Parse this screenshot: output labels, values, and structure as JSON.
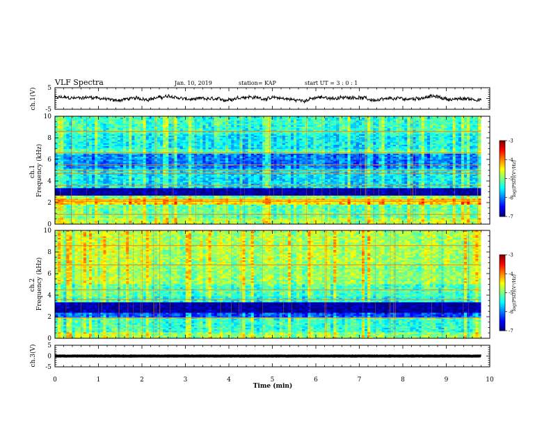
{
  "header": {
    "title": "VLF Spectra",
    "date": "Jan. 10, 2019",
    "station": "station= KAP",
    "start": "start  UT =   3 : 0  : 1"
  },
  "chart_data": [
    {
      "type": "line",
      "panel": "ch1-waveform",
      "ylabel": "ch.1(V)",
      "ylim": [
        -5,
        5
      ],
      "yticks": [
        "5",
        "-5"
      ],
      "xlim": [
        0,
        10
      ],
      "data_end_min": 9.8,
      "baseline": 0,
      "amplitude": 1.6,
      "color": "#000000"
    },
    {
      "type": "heatmap",
      "panel": "ch1-spectrogram",
      "ylabel": "ch.1\nFrequency (kHz)",
      "ylabel_lines": [
        "ch.1",
        "Frequency (kHz)"
      ],
      "ylim": [
        0,
        10
      ],
      "yticks": [
        "0",
        "2",
        "4",
        "6",
        "8",
        "10"
      ],
      "xlim": [
        0,
        10
      ],
      "data_end_min": 9.8,
      "bands": [
        {
          "from": 0.0,
          "to": 0.6,
          "level": -4.8
        },
        {
          "from": 0.6,
          "to": 1.8,
          "level": -5.1
        },
        {
          "from": 1.8,
          "to": 2.4,
          "level": -4.4
        },
        {
          "from": 2.4,
          "to": 2.7,
          "level": -5.0
        },
        {
          "from": 2.7,
          "to": 3.3,
          "level": -6.9
        },
        {
          "from": 3.3,
          "to": 3.6,
          "level": -5.6
        },
        {
          "from": 3.6,
          "to": 5.2,
          "level": -5.6
        },
        {
          "from": 5.2,
          "to": 6.5,
          "level": -6.0
        },
        {
          "from": 6.5,
          "to": 7.0,
          "level": -5.2
        },
        {
          "from": 7.0,
          "to": 8.4,
          "level": -5.5
        },
        {
          "from": 8.4,
          "to": 10.0,
          "level": -5.3
        }
      ],
      "lines_khz": [
        0.9,
        2.1,
        2.25,
        3.6,
        4.7,
        5.0,
        5.5,
        6.6,
        8.6
      ],
      "colorbar": {
        "min": -7,
        "max": -3,
        "ticks": [
          "-3",
          "-4",
          "-5",
          "-6",
          "-7"
        ],
        "label": "log(PSD)(V²/Hz)"
      }
    },
    {
      "type": "heatmap",
      "panel": "ch2-spectrogram",
      "ylabel": "ch.2\nFrequency (kHz)",
      "ylabel_lines": [
        "ch.2",
        "Frequency (kHz)"
      ],
      "ylim": [
        0,
        10
      ],
      "yticks": [
        "0",
        "2",
        "4",
        "6",
        "8",
        "10"
      ],
      "xlim": [
        0,
        10
      ],
      "data_end_min": 9.8,
      "bands": [
        {
          "from": 0.0,
          "to": 0.6,
          "level": -4.9
        },
        {
          "from": 0.6,
          "to": 1.9,
          "level": -5.3
        },
        {
          "from": 1.9,
          "to": 2.4,
          "level": -6.2
        },
        {
          "from": 2.4,
          "to": 3.4,
          "level": -6.9
        },
        {
          "from": 3.4,
          "to": 3.9,
          "level": -5.4
        },
        {
          "from": 3.9,
          "to": 5.0,
          "level": -5.2
        },
        {
          "from": 5.0,
          "to": 7.0,
          "level": -4.9
        },
        {
          "from": 7.0,
          "to": 10.0,
          "level": -4.8
        }
      ],
      "lines_khz": [
        1.9,
        3.6,
        4.5,
        6.8,
        8.6
      ],
      "colorbar": {
        "min": -7,
        "max": -3,
        "ticks": [
          "-3",
          "-4",
          "-5",
          "-6",
          "-7"
        ],
        "label": "log(PSD)(V²/Hz)"
      }
    },
    {
      "type": "line",
      "panel": "ch3-waveform",
      "ylabel": "ch.3(V)",
      "ylim": [
        -5,
        5
      ],
      "yticks": [
        "5",
        "0",
        "-5"
      ],
      "xlim": [
        0,
        10
      ],
      "data_end_min": 9.8,
      "baseline": 0,
      "amplitude": 0.15,
      "color": "#000000"
    }
  ],
  "xaxis": {
    "label": "Time  (min)",
    "ticks": [
      "0",
      "1",
      "2",
      "3",
      "4",
      "5",
      "6",
      "7",
      "8",
      "9",
      "10"
    ]
  }
}
